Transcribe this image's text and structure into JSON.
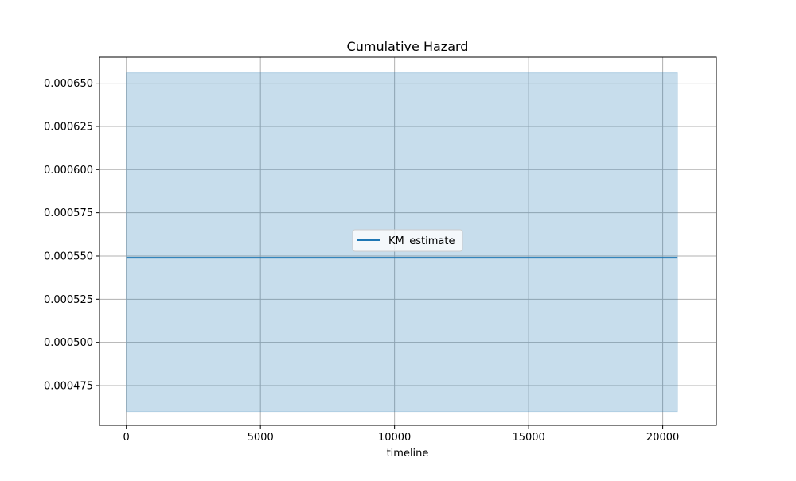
{
  "chart_data": {
    "type": "line",
    "title": "Cumulative Hazard",
    "xlabel": "timeline",
    "ylabel": "",
    "xlim": [
      -1000,
      22000
    ],
    "ylim": [
      0.000452,
      0.000665
    ],
    "xticks": [
      0,
      5000,
      10000,
      15000,
      20000
    ],
    "xtick_labels": [
      "0",
      "5000",
      "10000",
      "15000",
      "20000"
    ],
    "yticks": [
      0.000475,
      0.0005,
      0.000525,
      0.00055,
      0.000575,
      0.0006,
      0.000625,
      0.00065
    ],
    "ytick_labels": [
      "0.000475",
      "0.000500",
      "0.000525",
      "0.000550",
      "0.000575",
      "0.000600",
      "0.000625",
      "0.000650"
    ],
    "grid": true,
    "legend_position": "center",
    "series": [
      {
        "name": "KM_estimate",
        "color": "#1f77b4",
        "x": [
          0,
          20550
        ],
        "y": [
          0.000549,
          0.000549
        ],
        "ci_lower": [
          0.00046,
          0.00046
        ],
        "ci_upper": [
          0.000656,
          0.000656
        ]
      }
    ]
  }
}
